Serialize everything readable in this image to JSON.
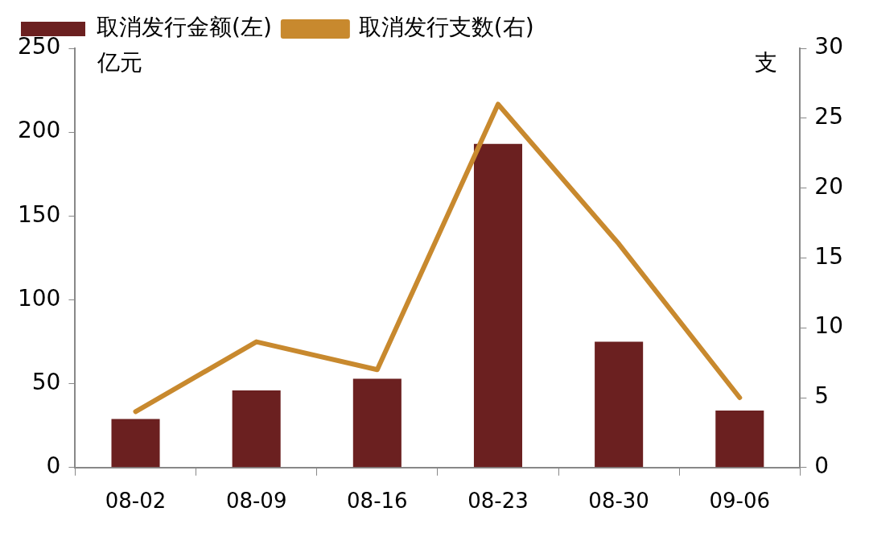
{
  "chart_data": {
    "type": "bar",
    "categories": [
      "08-02",
      "08-09",
      "08-16",
      "08-23",
      "08-30",
      "09-06"
    ],
    "ylabel": "亿元",
    "y2label": "支",
    "series": [
      {
        "name": "取消发行金额(左)",
        "color": "#6b2020",
        "values": [
          29,
          46,
          53,
          193,
          75,
          34
        ]
      },
      {
        "name": "取消发行支数(右)",
        "type": "line",
        "axis": "y2",
        "color": "#c8892e",
        "values": [
          4,
          9,
          7,
          26,
          16,
          5
        ]
      }
    ],
    "ylim": [
      0,
      250
    ],
    "yticks": [
      0,
      50,
      100,
      150,
      200,
      250
    ],
    "y2lim": [
      0,
      30
    ],
    "y2ticks": [
      0,
      5,
      10,
      15,
      20,
      25,
      30
    ],
    "grid": false,
    "legend": "top left",
    "marker": "none"
  }
}
